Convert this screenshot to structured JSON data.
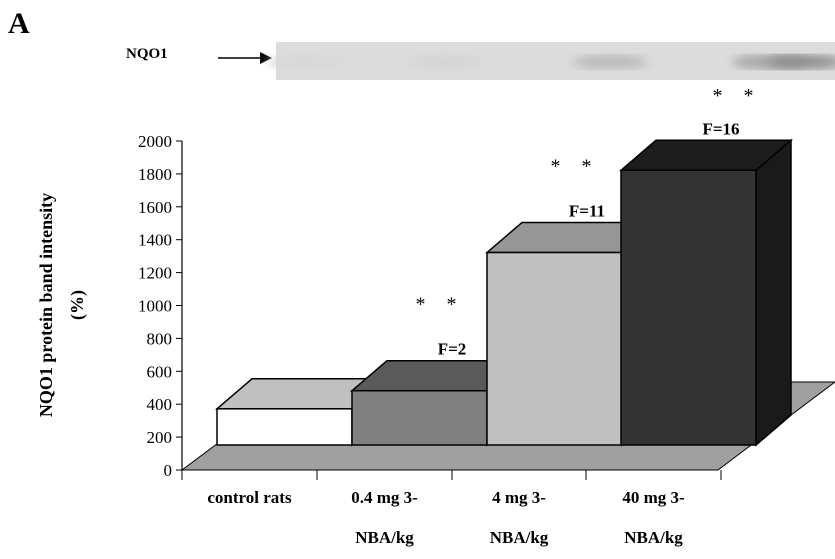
{
  "panel_letter": "A",
  "blot": {
    "label": "NQO1",
    "band_intensity": [
      0.02,
      0.03,
      0.16,
      0.26,
      0.36
    ],
    "asterisks": "* *"
  },
  "chart_data": {
    "type": "bar",
    "style": "3d",
    "categories": [
      "control rats",
      "0.4 mg 3-NBA/kg",
      "4 mg 3-NBA/kg",
      "40 mg 3-NBA/kg"
    ],
    "category_lines": [
      [
        "control rats"
      ],
      [
        "0.4 mg 3-",
        "NBA/kg"
      ],
      [
        "4 mg 3-",
        "NBA/kg"
      ],
      [
        "40 mg 3-",
        "NBA/kg"
      ]
    ],
    "values": [
      220,
      330,
      1170,
      1670
    ],
    "bar_labels": [
      "",
      "F=2",
      "F=11",
      "F=16"
    ],
    "significance": [
      "",
      "* *",
      "* *",
      ""
    ],
    "colors": {
      "front": [
        "#ffffff",
        "#808080",
        "#c0c0c0",
        "#333333"
      ],
      "top": [
        "#c0c0c0",
        "#5a5a5a",
        "#969696",
        "#1c1c1c"
      ],
      "side": [
        "#d8d8d8",
        "#4a4a4a",
        "#a8a8a8",
        "#1a1a1a"
      ],
      "floor": "#a0a0a0"
    },
    "ylabel_line1": "NQO1 protein band intensity",
    "ylabel_line2": "(%)",
    "yticks": [
      0,
      200,
      400,
      600,
      800,
      1000,
      1200,
      1400,
      1600,
      1800,
      2000
    ],
    "ylim": [
      0,
      2000
    ],
    "grid": false
  }
}
